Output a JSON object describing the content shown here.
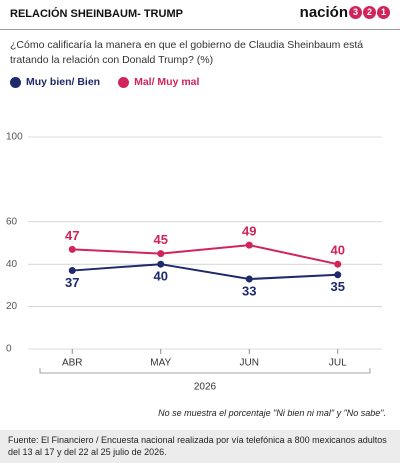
{
  "header": {
    "title": "RELACIÓN SHEINBAUM- TRUMP",
    "logo": {
      "name": "nación",
      "digits": [
        "3",
        "2",
        "1"
      ]
    }
  },
  "chart_data": {
    "type": "line",
    "subtitle": "¿Cómo calificaría la manera en que el gobierno de Claudia Sheinbaum está tratando la relación con Donald Trump? (%)",
    "categories": [
      "ABR",
      "MAY",
      "JUN",
      "JUL"
    ],
    "xlabel": "2026",
    "series": [
      {
        "name": "Muy bien/ Bien",
        "color": "#1f2a6b",
        "values": [
          37,
          40,
          33,
          35
        ],
        "label_position": "below"
      },
      {
        "name": "Mal/ Muy mal",
        "color": "#d0245a",
        "values": [
          47,
          45,
          49,
          40
        ],
        "label_position": "above"
      }
    ],
    "ylim": [
      0,
      100
    ],
    "yticks": [
      0,
      20,
      40,
      60,
      100
    ],
    "grid": true,
    "note": "No se muestra el porcentaje \"Ni bien ni mal\" y \"No sabe\"."
  },
  "footer": {
    "source": "Fuente: El Financiero / Encuesta nacional realizada por vía telefónica a 800 mexicanos adultos del 13 al 17 y del 22 al 25 julio de 2026."
  }
}
